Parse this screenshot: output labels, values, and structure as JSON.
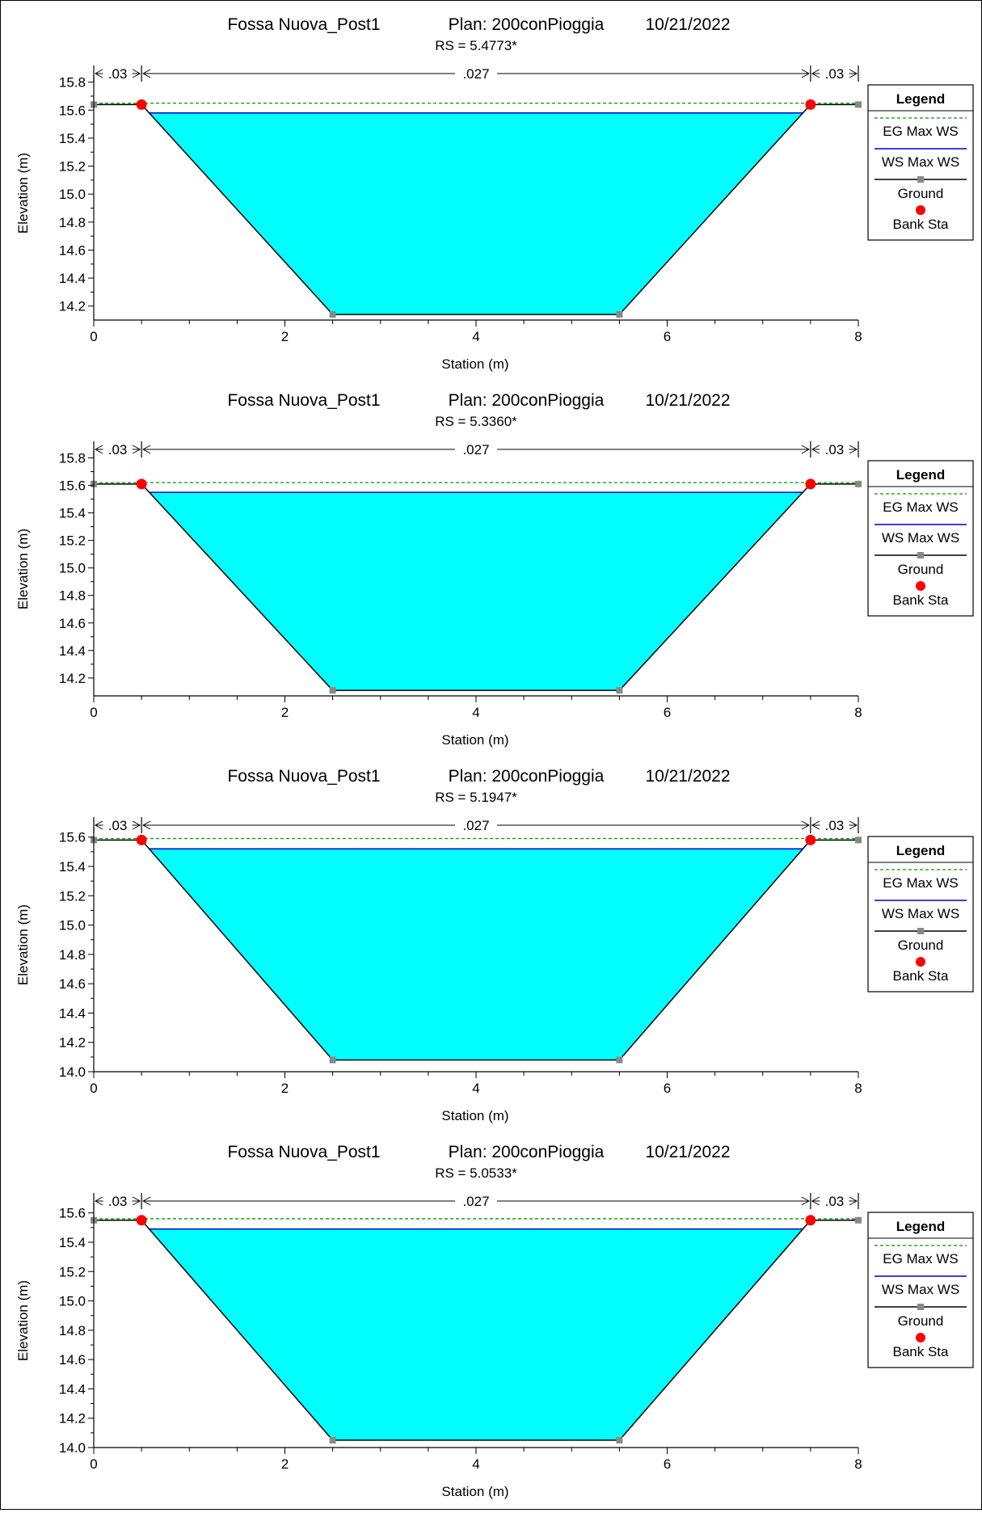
{
  "legend_title": "Legend",
  "axis": {
    "xlabel": "Station (m)",
    "ylabel": "Elevation (m)"
  },
  "series_names": {
    "eg": "EG Max WS",
    "ws": "WS Max WS",
    "ground": "Ground",
    "bank": "Bank Sta"
  },
  "colors": {
    "water": "#00FFFF",
    "eg": "#009900",
    "ws": "#0000CC",
    "ground": "#000000",
    "ground_marker": "#888888",
    "bank": "#FF0000"
  },
  "chart_data": [
    {
      "type": "area",
      "title": "Fossa Nuova_Post1",
      "plan": "Plan: 200conPioggia",
      "date": "10/21/2022",
      "subtitle": "RS = 5.4773*",
      "xlim": [
        0,
        8
      ],
      "ylim": [
        14.1,
        15.85
      ],
      "yticks": [
        14.2,
        14.4,
        14.6,
        14.8,
        15.0,
        15.2,
        15.4,
        15.6,
        15.8
      ],
      "xticks": [
        0,
        2,
        4,
        6,
        8
      ],
      "manning": [
        ".03",
        ".027",
        ".03"
      ],
      "manning_breaks": [
        0,
        0.5,
        7.5,
        8
      ],
      "ground": {
        "x": [
          0,
          0.5,
          2.5,
          5.5,
          7.5,
          8
        ],
        "y": [
          15.64,
          15.64,
          14.14,
          14.14,
          15.64,
          15.64
        ]
      },
      "bank_sta": [
        0.5,
        7.5
      ],
      "eg_max_ws": 15.65,
      "ws_max_ws": 15.58
    },
    {
      "type": "area",
      "title": "Fossa Nuova_Post1",
      "plan": "Plan: 200conPioggia",
      "date": "10/21/2022",
      "subtitle": "RS = 5.3360*",
      "xlim": [
        0,
        8
      ],
      "ylim": [
        14.07,
        15.85
      ],
      "yticks": [
        14.2,
        14.4,
        14.6,
        14.8,
        15.0,
        15.2,
        15.4,
        15.6,
        15.8
      ],
      "xticks": [
        0,
        2,
        4,
        6,
        8
      ],
      "manning": [
        ".03",
        ".027",
        ".03"
      ],
      "manning_breaks": [
        0,
        0.5,
        7.5,
        8
      ],
      "ground": {
        "x": [
          0,
          0.5,
          2.5,
          5.5,
          7.5,
          8
        ],
        "y": [
          15.61,
          15.61,
          14.11,
          14.11,
          15.61,
          15.61
        ]
      },
      "bank_sta": [
        0.5,
        7.5
      ],
      "eg_max_ws": 15.62,
      "ws_max_ws": 15.55
    },
    {
      "type": "area",
      "title": "Fossa Nuova_Post1",
      "plan": "Plan: 200conPioggia",
      "date": "10/21/2022",
      "subtitle": "RS = 5.1947*",
      "xlim": [
        0,
        8
      ],
      "ylim": [
        14.0,
        15.67
      ],
      "yticks": [
        14.0,
        14.2,
        14.4,
        14.6,
        14.8,
        15.0,
        15.2,
        15.4,
        15.6
      ],
      "xticks": [
        0,
        2,
        4,
        6,
        8
      ],
      "manning": [
        ".03",
        ".027",
        ".03"
      ],
      "manning_breaks": [
        0,
        0.5,
        7.5,
        8
      ],
      "ground": {
        "x": [
          0,
          0.5,
          2.5,
          5.5,
          7.5,
          8
        ],
        "y": [
          15.58,
          15.58,
          14.08,
          14.08,
          15.58,
          15.58
        ]
      },
      "bank_sta": [
        0.5,
        7.5
      ],
      "eg_max_ws": 15.59,
      "ws_max_ws": 15.52
    },
    {
      "type": "area",
      "title": "Fossa Nuova_Post1",
      "plan": "Plan: 200conPioggia",
      "date": "10/21/2022",
      "subtitle": "RS = 5.0533*",
      "xlim": [
        0,
        8
      ],
      "ylim": [
        14.0,
        15.67
      ],
      "yticks": [
        14.0,
        14.2,
        14.4,
        14.6,
        14.8,
        15.0,
        15.2,
        15.4,
        15.6
      ],
      "xticks": [
        0,
        2,
        4,
        6,
        8
      ],
      "manning": [
        ".03",
        ".027",
        ".03"
      ],
      "manning_breaks": [
        0,
        0.5,
        7.5,
        8
      ],
      "ground": {
        "x": [
          0,
          0.5,
          2.5,
          5.5,
          7.5,
          8
        ],
        "y": [
          15.55,
          15.55,
          14.05,
          14.05,
          15.55,
          15.55
        ]
      },
      "bank_sta": [
        0.5,
        7.5
      ],
      "eg_max_ws": 15.56,
      "ws_max_ws": 15.49
    }
  ]
}
